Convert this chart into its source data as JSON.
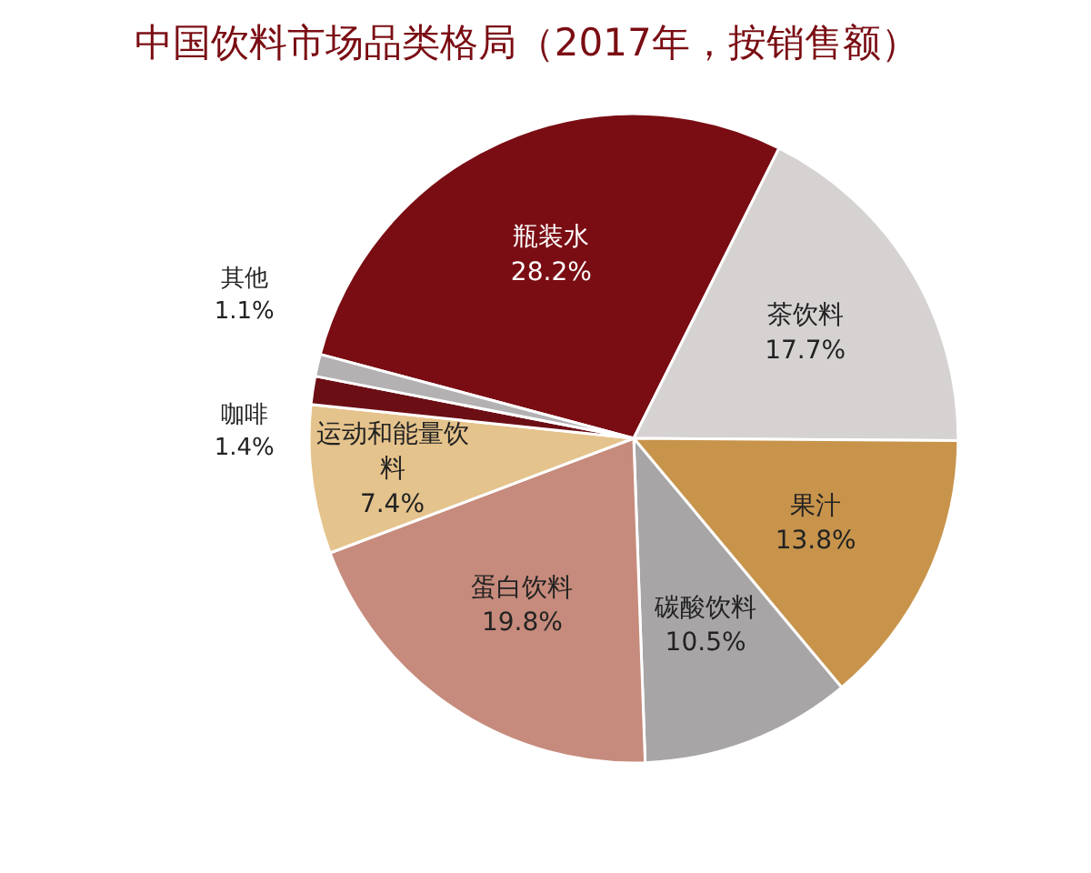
{
  "chart_data": {
    "type": "pie",
    "title": "中国饮料市场品类格局（2017年，按销售额）",
    "categories": [
      "瓶装水",
      "茶饮料",
      "果汁",
      "碳酸饮料",
      "蛋白饮料",
      "运动和能量饮料",
      "咖啡",
      "其他"
    ],
    "values": [
      28.2,
      17.7,
      13.8,
      10.5,
      19.8,
      7.4,
      1.4,
      1.1
    ],
    "value_labels": [
      "28.2%",
      "17.7%",
      "13.8%",
      "10.5%",
      "19.8%",
      "7.4%",
      "1.4%",
      "1.1%"
    ],
    "colors": [
      "#7a0d13",
      "#d6d2d2",
      "#c8944c",
      "#a8a5a7",
      "#c68b7c",
      "#e5c38c",
      "#6c0f15",
      "#b3b1b1"
    ]
  }
}
